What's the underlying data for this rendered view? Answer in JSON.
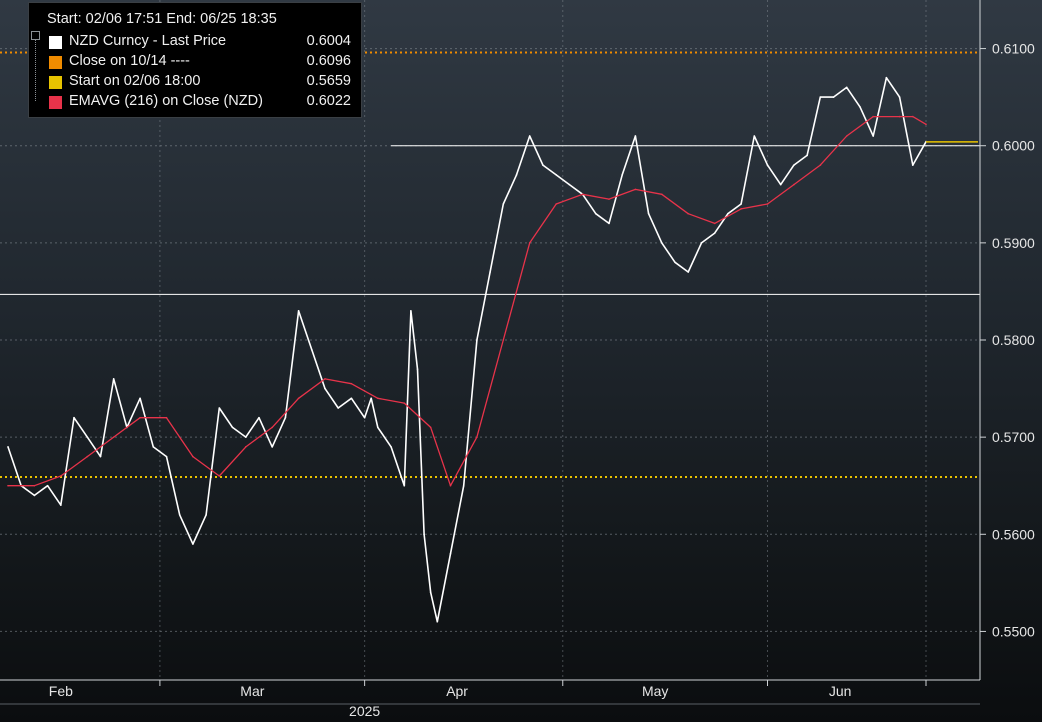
{
  "legend": {
    "header": "Start: 02/06 17:51 End: 06/25 18:35",
    "entries": [
      {
        "label": "NZD Curncy  - Last Price",
        "value": "0.6004",
        "color": "#ffffff"
      },
      {
        "label": "Close on 10/14 ----",
        "value": "0.6096",
        "color": "#f08c00"
      },
      {
        "label": "Start on 02/06 18:00",
        "value": "0.5659",
        "color": "#e8c300"
      },
      {
        "label": "EMAVG (216)  on Close (NZD)",
        "value": "0.6022",
        "color": "#e8334a"
      }
    ]
  },
  "chart_data": {
    "type": "line",
    "ylim": [
      0.545,
      0.615
    ],
    "yticks": [
      "0.5500",
      "0.5600",
      "0.5700",
      "0.5800",
      "0.5900",
      "0.6000",
      "0.6100"
    ],
    "xticks": [
      "Feb",
      "Mar",
      "Apr",
      "May",
      "Jun"
    ],
    "xyear": "2025",
    "date_range": [
      "2025-02-06",
      "2025-06-25"
    ],
    "horizontal_lines": [
      {
        "name": "Close on 10/14",
        "value": 0.6096,
        "color": "#f08c00",
        "style": "dotted"
      },
      {
        "name": "Start on 02/06 18:00",
        "value": 0.5659,
        "color": "#e8c300",
        "style": "dotted"
      },
      {
        "name": "level 0.6000",
        "value": 0.6,
        "color": "#ffffff",
        "style": "solid",
        "from": "2025-04-05"
      },
      {
        "name": "level 0.5847",
        "value": 0.5847,
        "color": "#ffffff",
        "style": "solid"
      }
    ],
    "series": [
      {
        "name": "NZD Curncy - Last Price",
        "color": "#ffffff",
        "x": [
          "2025-02-06",
          "2025-02-08",
          "2025-02-10",
          "2025-02-12",
          "2025-02-14",
          "2025-02-16",
          "2025-02-18",
          "2025-02-20",
          "2025-02-22",
          "2025-02-24",
          "2025-02-26",
          "2025-02-28",
          "2025-03-02",
          "2025-03-04",
          "2025-03-06",
          "2025-03-08",
          "2025-03-10",
          "2025-03-12",
          "2025-03-14",
          "2025-03-16",
          "2025-03-18",
          "2025-03-20",
          "2025-03-22",
          "2025-03-24",
          "2025-03-26",
          "2025-03-28",
          "2025-03-30",
          "2025-04-01",
          "2025-04-02",
          "2025-04-03",
          "2025-04-05",
          "2025-04-07",
          "2025-04-08",
          "2025-04-09",
          "2025-04-10",
          "2025-04-11",
          "2025-04-12",
          "2025-04-14",
          "2025-04-16",
          "2025-04-18",
          "2025-04-20",
          "2025-04-22",
          "2025-04-24",
          "2025-04-26",
          "2025-04-28",
          "2025-04-30",
          "2025-05-02",
          "2025-05-04",
          "2025-05-06",
          "2025-05-08",
          "2025-05-10",
          "2025-05-12",
          "2025-05-14",
          "2025-05-16",
          "2025-05-18",
          "2025-05-20",
          "2025-05-22",
          "2025-05-24",
          "2025-05-26",
          "2025-05-28",
          "2025-05-30",
          "2025-06-01",
          "2025-06-03",
          "2025-06-05",
          "2025-06-07",
          "2025-06-09",
          "2025-06-11",
          "2025-06-13",
          "2025-06-15",
          "2025-06-17",
          "2025-06-19",
          "2025-06-21",
          "2025-06-23",
          "2025-06-25"
        ],
        "y": [
          0.569,
          0.565,
          0.564,
          0.565,
          0.563,
          0.572,
          0.57,
          0.568,
          0.576,
          0.571,
          0.574,
          0.569,
          0.568,
          0.562,
          0.559,
          0.562,
          0.573,
          0.571,
          0.57,
          0.572,
          0.569,
          0.572,
          0.583,
          0.579,
          0.575,
          0.573,
          0.574,
          0.572,
          0.574,
          0.571,
          0.569,
          0.565,
          0.583,
          0.577,
          0.56,
          0.554,
          0.551,
          0.558,
          0.565,
          0.58,
          0.587,
          0.594,
          0.597,
          0.601,
          0.598,
          0.597,
          0.596,
          0.595,
          0.593,
          0.592,
          0.597,
          0.601,
          0.593,
          0.59,
          0.588,
          0.587,
          0.59,
          0.591,
          0.593,
          0.594,
          0.601,
          0.598,
          0.596,
          0.598,
          0.599,
          0.605,
          0.605,
          0.606,
          0.604,
          0.601,
          0.607,
          0.605,
          0.598,
          0.6004
        ]
      },
      {
        "name": "EMAVG (216) on Close (NZD)",
        "color": "#e8334a",
        "x": [
          "2025-02-06",
          "2025-02-10",
          "2025-02-14",
          "2025-02-18",
          "2025-02-22",
          "2025-02-26",
          "2025-03-02",
          "2025-03-06",
          "2025-03-10",
          "2025-03-14",
          "2025-03-18",
          "2025-03-22",
          "2025-03-26",
          "2025-03-30",
          "2025-04-03",
          "2025-04-07",
          "2025-04-11",
          "2025-04-14",
          "2025-04-18",
          "2025-04-22",
          "2025-04-26",
          "2025-04-30",
          "2025-05-04",
          "2025-05-08",
          "2025-05-12",
          "2025-05-16",
          "2025-05-20",
          "2025-05-24",
          "2025-05-28",
          "2025-06-01",
          "2025-06-05",
          "2025-06-09",
          "2025-06-13",
          "2025-06-17",
          "2025-06-21",
          "2025-06-23",
          "2025-06-25"
        ],
        "y": [
          0.565,
          0.565,
          0.566,
          0.568,
          0.57,
          0.572,
          0.572,
          0.568,
          0.566,
          0.569,
          0.571,
          0.574,
          0.576,
          0.5755,
          0.574,
          0.5735,
          0.571,
          0.565,
          0.57,
          0.58,
          0.59,
          0.594,
          0.595,
          0.5945,
          0.5955,
          0.595,
          0.593,
          0.592,
          0.5935,
          0.594,
          0.596,
          0.598,
          0.601,
          0.603,
          0.603,
          0.603,
          0.6022
        ]
      }
    ]
  }
}
